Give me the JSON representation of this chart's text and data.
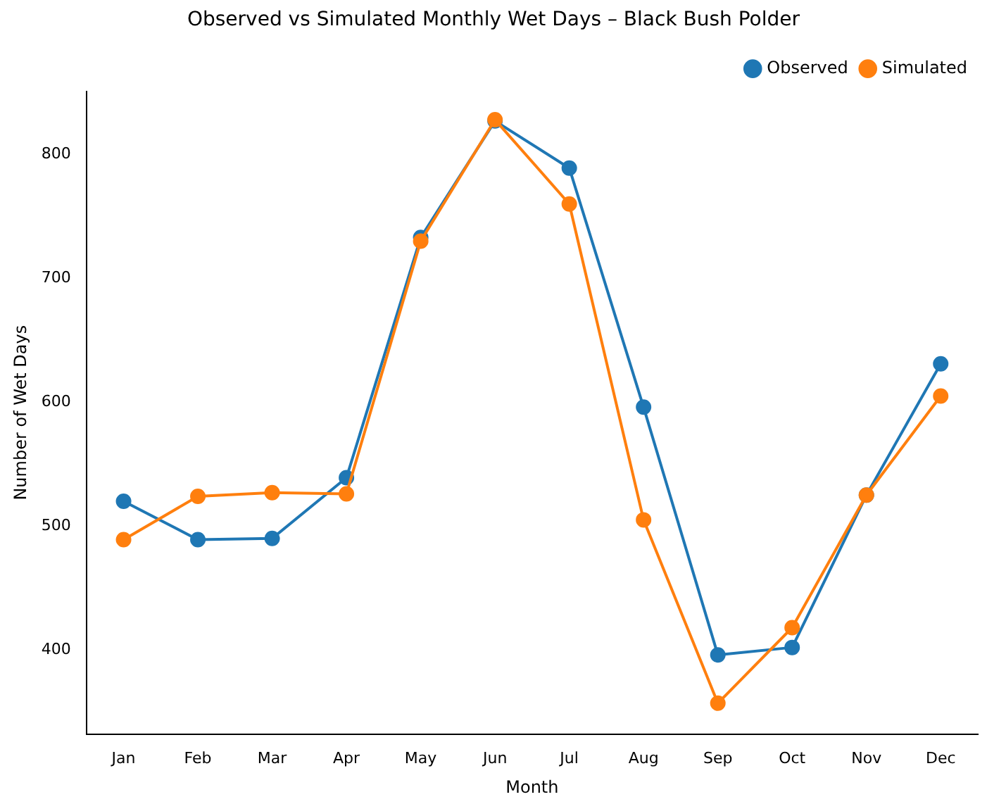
{
  "chart_data": {
    "type": "line",
    "title": "Observed vs Simulated Monthly Wet Days – Black Bush Polder",
    "xlabel": "Month",
    "ylabel": "Number of Wet Days",
    "categories": [
      "Jan",
      "Feb",
      "Mar",
      "Apr",
      "May",
      "Jun",
      "Jul",
      "Aug",
      "Sep",
      "Oct",
      "Nov",
      "Dec"
    ],
    "series": [
      {
        "name": "Observed",
        "color": "#1f77b4",
        "values": [
          520,
          489,
          490,
          539,
          733,
          827,
          789,
          596,
          396,
          402,
          525,
          631
        ]
      },
      {
        "name": "Simulated",
        "color": "#ff7f0e",
        "values": [
          489,
          524,
          527,
          526,
          730,
          828,
          760,
          505,
          357,
          418,
          525,
          605
        ]
      }
    ],
    "ylim": [
      332,
      851
    ],
    "yticks": [
      400,
      500,
      600,
      700,
      800
    ],
    "grid": false,
    "legend": "top right",
    "marker": "circle",
    "line_style": "solid"
  }
}
